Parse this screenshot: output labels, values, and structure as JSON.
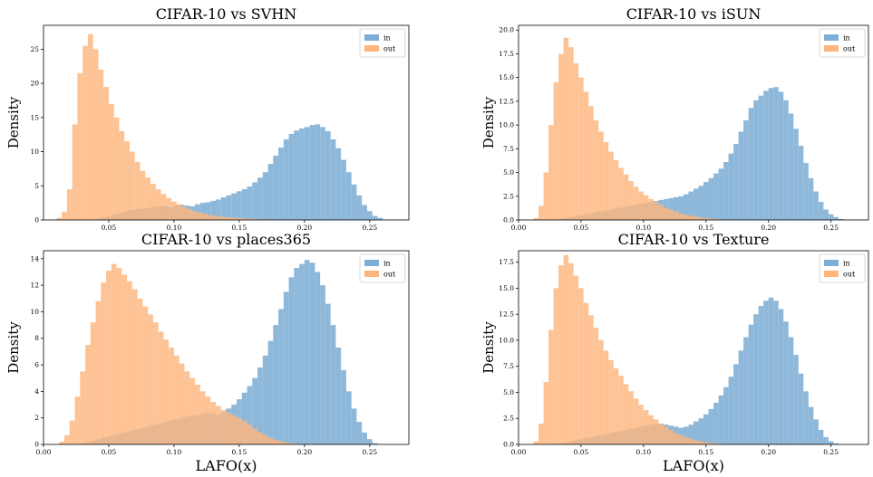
{
  "colors": {
    "in": "#7eaed5",
    "out": "#fdb67d",
    "axis": "#000000"
  },
  "xlabel": "LAFO(x)",
  "chart_data": [
    {
      "type": "histogram",
      "title": "CIFAR-10 vs SVHN",
      "ylabel": "Density",
      "xlabel": "",
      "xlim": [
        0.0,
        0.28
      ],
      "ylim": [
        0,
        28.5
      ],
      "xticks": [
        "0.05",
        "0.10",
        "0.15",
        "0.20",
        "0.25"
      ],
      "yticks": [
        "0",
        "5",
        "10",
        "15",
        "20",
        "25"
      ],
      "legend": {
        "position": "top-right",
        "entries": [
          "in",
          "out"
        ]
      },
      "series": [
        {
          "name": "in",
          "bin_start": 0.02,
          "bin_width": 0.004,
          "values": [
            0,
            0,
            0,
            0,
            0.1,
            0.2,
            0.4,
            0.6,
            0.8,
            1.0,
            1.2,
            1.4,
            1.5,
            1.6,
            1.7,
            1.8,
            1.9,
            2.0,
            2.0,
            1.9,
            2.1,
            2.2,
            2.1,
            2.0,
            2.3,
            2.5,
            2.6,
            2.8,
            3.0,
            3.3,
            3.6,
            3.9,
            4.2,
            4.5,
            4.9,
            5.5,
            6.2,
            7.0,
            8.2,
            9.4,
            10.6,
            11.8,
            12.6,
            13.1,
            13.4,
            13.6,
            13.9,
            14.0,
            13.6,
            13.0,
            11.8,
            10.5,
            8.8,
            7.0,
            5.2,
            3.6,
            2.2,
            1.3,
            0.6,
            0.3
          ]
        },
        {
          "name": "out",
          "bin_start": 0.01,
          "bin_width": 0.004,
          "values": [
            0.3,
            1.2,
            4.5,
            14,
            21.5,
            25.5,
            27.2,
            25,
            22,
            19.5,
            17,
            15,
            13,
            11.5,
            10,
            8.5,
            7.2,
            6.2,
            5.3,
            4.5,
            3.8,
            3.2,
            2.7,
            2.3,
            1.9,
            1.6,
            1.3,
            1.1,
            0.9,
            0.7,
            0.6,
            0.5,
            0.4,
            0.35,
            0.3,
            0.25,
            0.2,
            0.15,
            0.1,
            0.05
          ]
        }
      ]
    },
    {
      "type": "histogram",
      "title": "CIFAR-10 vs iSUN",
      "ylabel": "Density",
      "xlabel": "",
      "xlim": [
        0.0,
        0.28
      ],
      "ylim": [
        0,
        20.5
      ],
      "xticks": [
        "0.00",
        "0.05",
        "0.10",
        "0.15",
        "0.20",
        "0.25"
      ],
      "yticks": [
        "0.0",
        "2.5",
        "5.0",
        "7.5",
        "10.0",
        "12.5",
        "15.0",
        "17.5",
        "20.0"
      ],
      "legend": {
        "position": "top-right",
        "entries": [
          "in",
          "out"
        ]
      },
      "series": [
        {
          "name": "in",
          "bin_start": 0.02,
          "bin_width": 0.004,
          "values": [
            0,
            0,
            0,
            0.1,
            0.2,
            0.3,
            0.4,
            0.5,
            0.6,
            0.7,
            0.8,
            0.9,
            1.0,
            1.1,
            1.2,
            1.3,
            1.4,
            1.5,
            1.6,
            1.7,
            1.8,
            1.9,
            2.0,
            2.1,
            2.2,
            2.3,
            2.4,
            2.5,
            2.7,
            3.0,
            3.3,
            3.6,
            4.0,
            4.4,
            4.9,
            5.4,
            6.1,
            7.0,
            8.0,
            9.3,
            10.5,
            11.8,
            12.6,
            13.1,
            13.6,
            13.9,
            14.0,
            13.5,
            12.6,
            11.2,
            9.6,
            7.8,
            6.0,
            4.4,
            3.0,
            1.9,
            1.1,
            0.6,
            0.3,
            0.1
          ]
        },
        {
          "name": "out",
          "bin_start": 0.012,
          "bin_width": 0.004,
          "values": [
            0.2,
            1.5,
            5,
            10,
            14.5,
            17.5,
            19.2,
            18.2,
            16.5,
            15,
            13.5,
            12,
            10.5,
            9.3,
            8.2,
            7.2,
            6.3,
            5.5,
            4.8,
            4.1,
            3.5,
            3.0,
            2.6,
            2.2,
            1.9,
            1.6,
            1.3,
            1.1,
            0.9,
            0.7,
            0.55,
            0.45,
            0.35,
            0.25,
            0.2,
            0.15,
            0.1,
            0.05
          ]
        }
      ]
    },
    {
      "type": "histogram",
      "title": "CIFAR-10 vs places365",
      "ylabel": "Density",
      "xlabel": "LAFO(x)",
      "xlim": [
        0.0,
        0.28
      ],
      "ylim": [
        0,
        14.6
      ],
      "xticks": [
        "0.00",
        "0.05",
        "0.10",
        "0.15",
        "0.20",
        "0.25"
      ],
      "yticks": [
        "0",
        "2",
        "4",
        "6",
        "8",
        "10",
        "12",
        "14"
      ],
      "legend": {
        "position": "top-right",
        "entries": [
          "in",
          "out"
        ]
      },
      "series": [
        {
          "name": "in",
          "bin_start": 0.02,
          "bin_width": 0.004,
          "values": [
            0,
            0,
            0.1,
            0.2,
            0.3,
            0.4,
            0.5,
            0.6,
            0.7,
            0.8,
            0.9,
            1.0,
            1.1,
            1.2,
            1.3,
            1.4,
            1.5,
            1.6,
            1.7,
            1.8,
            1.9,
            2.0,
            2.1,
            2.2,
            2.2,
            2.3,
            2.4,
            2.3,
            2.2,
            2.4,
            2.7,
            3.0,
            3.4,
            3.9,
            4.4,
            5.0,
            5.8,
            6.7,
            7.8,
            9.0,
            10.2,
            11.5,
            12.6,
            13.3,
            13.6,
            13.9,
            13.7,
            13.0,
            12.0,
            10.6,
            9.0,
            7.3,
            5.6,
            4.0,
            2.7,
            1.7,
            0.9,
            0.4,
            0.1,
            0
          ]
        },
        {
          "name": "out",
          "bin_start": 0.012,
          "bin_width": 0.004,
          "values": [
            0.2,
            0.7,
            1.8,
            3.6,
            5.5,
            7.5,
            9.2,
            10.8,
            12.2,
            13.1,
            13.6,
            13.3,
            12.8,
            12.3,
            11.7,
            11.0,
            10.4,
            9.8,
            9.2,
            8.5,
            7.9,
            7.3,
            6.7,
            6.1,
            5.5,
            5.0,
            4.5,
            4.0,
            3.6,
            3.2,
            2.9,
            2.6,
            2.4,
            2.2,
            2.0,
            1.8,
            1.5,
            1.2,
            0.9,
            0.7,
            0.5,
            0.35,
            0.25,
            0.15,
            0.1,
            0.05
          ]
        }
      ]
    },
    {
      "type": "histogram",
      "title": "CIFAR-10 vs Texture",
      "ylabel": "Density",
      "xlabel": "LAFO(x)",
      "xlim": [
        0.0,
        0.28
      ],
      "ylim": [
        0,
        18.6
      ],
      "xticks": [
        "0.00",
        "0.05",
        "0.10",
        "0.15",
        "0.20",
        "0.25"
      ],
      "yticks": [
        "0.0",
        "2.5",
        "5.0",
        "7.5",
        "10.0",
        "12.5",
        "15.0",
        "17.5"
      ],
      "legend": {
        "position": "top-right",
        "entries": [
          "in",
          "out"
        ]
      },
      "series": [
        {
          "name": "in",
          "bin_start": 0.02,
          "bin_width": 0.004,
          "values": [
            0,
            0,
            0,
            0.1,
            0.2,
            0.3,
            0.4,
            0.5,
            0.6,
            0.7,
            0.8,
            0.9,
            1.0,
            1.1,
            1.2,
            1.3,
            1.4,
            1.5,
            1.6,
            1.7,
            1.8,
            1.9,
            2.0,
            2.0,
            1.9,
            1.8,
            1.7,
            1.6,
            1.7,
            1.9,
            2.2,
            2.5,
            2.9,
            3.4,
            4.0,
            4.7,
            5.5,
            6.5,
            7.7,
            9.0,
            10.3,
            11.5,
            12.5,
            13.3,
            13.8,
            14.1,
            13.8,
            13.0,
            11.8,
            10.3,
            8.6,
            6.8,
            5.1,
            3.6,
            2.4,
            1.4,
            0.7,
            0.3,
            0.1,
            0
          ]
        },
        {
          "name": "out",
          "bin_start": 0.012,
          "bin_width": 0.004,
          "values": [
            0.3,
            2,
            6,
            11,
            15,
            17.2,
            18.2,
            17.4,
            16.2,
            15,
            13.6,
            12.4,
            11.2,
            10.0,
            9.0,
            8.1,
            7.3,
            6.6,
            5.8,
            5.1,
            4.4,
            3.8,
            3.3,
            2.8,
            2.4,
            2.0,
            1.7,
            1.4,
            1.1,
            0.9,
            0.7,
            0.55,
            0.4,
            0.3,
            0.2,
            0.15,
            0.1,
            0.05
          ]
        }
      ]
    }
  ]
}
